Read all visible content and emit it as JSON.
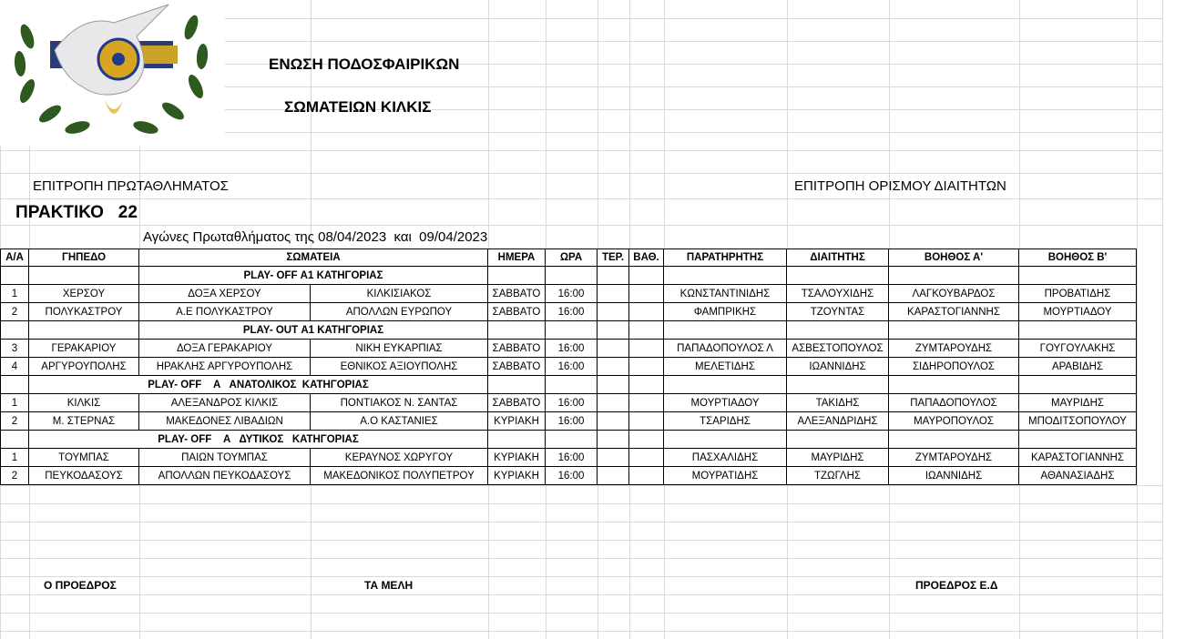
{
  "header": {
    "line1": "ΕΝΩΣΗ ΠΟΔΟΣΦΑΙΡΙΚΩΝ",
    "line2": "ΣΩΜΑΤΕΙΩΝ ΚΙΛΚΙΣ",
    "committee_left": "ΕΠΙΤΡΟΠΗ ΠΡΩΤΑΘΛΗΜΑΤΟΣ",
    "committee_right": "ΕΠΙΤΡΟΠΗ  ΟΡΙΣΜΟΥ  ΔΙΑΙΤΗΤΩΝ",
    "minutes": "ΠΡΑΚΤΙΚΟ   22",
    "subtitle": "Αγώνες Πρωταθλήματος της 08/04/2023  και  09/04/2023"
  },
  "table": {
    "columns": [
      "Α/Α",
      "ΓΗΠΕΔΟ",
      "ΣΩΜΑΤΕΙΑ",
      "ΗΜΕΡΑ",
      "ΩΡΑ",
      "ΤΕΡ.",
      "ΒΑΘ.",
      "ΠΑΡΑΤΗΡΗΤΗΣ",
      "ΔΙΑΙΤΗΤΗΣ",
      "ΒΟΗΘΟΣ  Α'",
      "ΒΟΗΘΟΣ  Β'"
    ],
    "groups": [
      {
        "title": "PLAY- OFF Α1 ΚΑΤΗΓΟΡΙΑΣ",
        "matches": [
          [
            "1",
            "ΧΕΡΣΟΥ",
            "ΔΟΞΑ ΧΕΡΣΟΥ",
            "ΚΙΛΚΙΣΙΑΚΟΣ",
            "ΣΑΒΒΑΤΟ",
            "16:00",
            "",
            "",
            "ΚΩΝΣΤΑΝΤΙΝΙΔΗΣ",
            "ΤΣΑΛΟΥΧΙΔΗΣ",
            "ΛΑΓΚΟΥΒΑΡΔΟΣ",
            "ΠΡΟΒΑΤΙΔΗΣ"
          ],
          [
            "2",
            "ΠΟΛΥΚΑΣΤΡΟΥ",
            "Α.Ε ΠΟΛΥΚΑΣΤΡΟΥ",
            "ΑΠΟΛΛΩΝ ΕΥΡΩΠΟΥ",
            "ΣΑΒΒΑΤΟ",
            "16:00",
            "",
            "",
            "ΦΑΜΠΡΙΚΗΣ",
            "ΤΖΟΥΝΤΑΣ",
            "ΚΑΡΑΣΤΟΓΙΑΝΝΗΣ",
            "ΜΟΥΡΤΙΑΔΟΥ"
          ]
        ]
      },
      {
        "title": "PLAY- OUT Α1 ΚΑΤΗΓΟΡΙΑΣ",
        "matches": [
          [
            "3",
            "ΓΕΡΑΚΑΡΙΟΥ",
            "ΔΟΞΑ ΓΕΡΑΚΑΡΙΟΥ",
            "ΝΙΚΗ ΕΥΚΑΡΠΙΑΣ",
            "ΣΑΒΒΑΤΟ",
            "16:00",
            "",
            "",
            "ΠΑΠΑΔΟΠΟΥΛΟΣ Λ",
            "ΑΣΒΕΣΤΟΠΟΥΛΟΣ",
            "ΖΥΜΤΑΡΟΥΔΗΣ",
            "ΓΟΥΓΟΥΛΑΚΗΣ"
          ],
          [
            "4",
            "ΑΡΓΥΡΟΥΠΟΛΗΣ",
            "ΗΡΑΚΛΗΣ ΑΡΓΥΡΟΥΠΟΛΗΣ",
            "ΕΘΝΙΚΟΣ ΑΞΙΟΥΠΟΛΗΣ",
            "ΣΑΒΒΑΤΟ",
            "16:00",
            "",
            "",
            "ΜΕΛΕΤΙΔΗΣ",
            "ΙΩΑΝΝΙΔΗΣ",
            "ΣΙΔΗΡΟΠΟΥΛΟΣ",
            "ΑΡΑΒΙΔΗΣ"
          ]
        ]
      },
      {
        "title": "PLAY- OFF    Α   ΑΝΑΤΟΛΙΚΟΣ  ΚΑΤΗΓΟΡΙΑΣ",
        "matches": [
          [
            "1",
            "ΚΙΛΚΙΣ",
            "ΑΛΕΞΑΝΔΡΟΣ ΚΙΛΚΙΣ",
            "ΠΟΝΤΙΑΚΟΣ Ν. ΣΑΝΤΑΣ",
            "ΣΑΒΒΑΤΟ",
            "16:00",
            "",
            "",
            "ΜΟΥΡΤΙΑΔΟΥ",
            "ΤΑΚΙΔΗΣ",
            "ΠΑΠΑΔΟΠΟΥΛΟΣ",
            "ΜΑΥΡΙΔΗΣ"
          ],
          [
            "2",
            "Μ. ΣΤΕΡΝΑΣ",
            "ΜΑΚΕΔΟΝΕΣ ΛΙΒΑΔΙΩΝ",
            "Α.Ο ΚΑΣΤΑΝΙΕΣ",
            "ΚΥΡΙΑΚΗ",
            "16:00",
            "",
            "",
            "ΤΣΑΡΙΔΗΣ",
            "ΑΛΕΞΑΝΔΡΙΔΗΣ",
            "ΜΑΥΡΟΠΟΥΛΟΣ",
            "ΜΠΟΔΙΤΣΟΠΟΥΛΟΥ"
          ]
        ]
      },
      {
        "title": "PLAY- OFF    Α   ΔΥΤΙΚΟΣ   ΚΑΤΗΓΟΡΙΑΣ",
        "matches": [
          [
            "1",
            "ΤΟΥΜΠΑΣ",
            "ΠΑΙΩΝ ΤΟΥΜΠΑΣ",
            "ΚΕΡΑΥΝΟΣ ΧΩΡΥΓΟΥ",
            "ΚΥΡΙΑΚΗ",
            "16:00",
            "",
            "",
            "ΠΑΣΧΑΛΙΔΗΣ",
            "ΜΑΥΡΙΔΗΣ",
            "ΖΥΜΤΑΡΟΥΔΗΣ",
            "ΚΑΡΑΣΤΟΓΙΑΝΝΗΣ"
          ],
          [
            "2",
            "ΠΕΥΚΟΔΑΣΟΥΣ",
            "ΑΠΟΛΛΩΝ ΠΕΥΚΟΔΑΣΟΥΣ",
            "ΜΑΚΕΔΟΝΙΚΟΣ ΠΟΛΥΠΕΤΡΟΥ",
            "ΚΥΡΙΑΚΗ",
            "16:00",
            "",
            "",
            "ΜΟΥΡΑΤΙΔΗΣ",
            "ΤΖΩΓΛΗΣ",
            "ΙΩΑΝΝΙΔΗΣ",
            "ΑΘΑΝΑΣΙΑΔΗΣ"
          ]
        ]
      }
    ]
  },
  "footer": {
    "president": "Ο ΠΡΟΕΔΡΟΣ",
    "members": "ΤΑ ΜΕΛΗ",
    "committee_president": "ΠΡΟΕΔΡΟΣ Ε.Δ"
  },
  "logo": {
    "text": "ΕΝΩΣΗ ΠΟΔΟΣΦΑΙΡΙΚΩΝ ΣΩΜΑΤΕΙΩΝ ΚΙΛΚΙΣ",
    "colors": {
      "wreath": "#2f5a1f",
      "ball": "#d9a520",
      "dove": "#e8e8ea"
    }
  }
}
